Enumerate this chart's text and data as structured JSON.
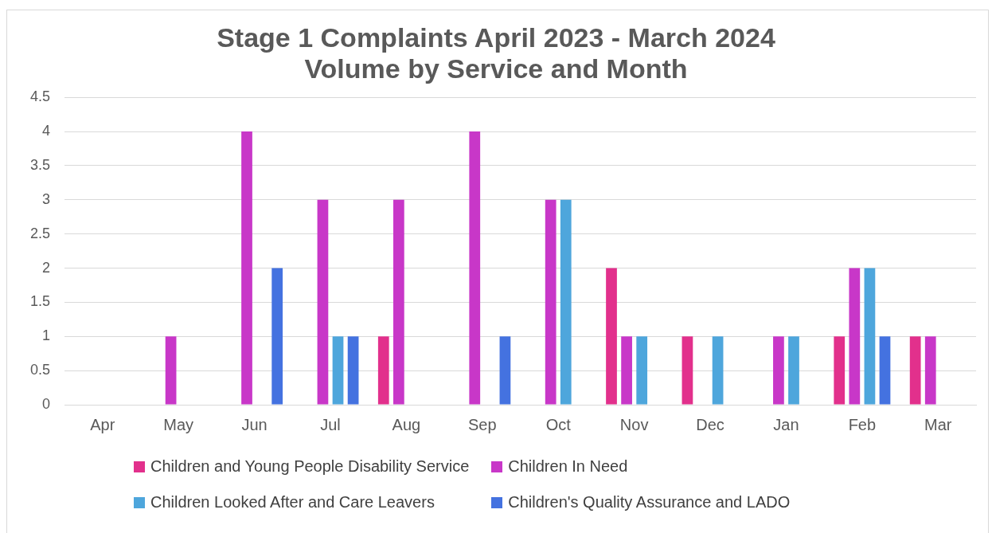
{
  "chart_data": {
    "type": "bar",
    "title": [
      "Stage 1 Complaints April 2023 - March 2024",
      "Volume by Service and Month"
    ],
    "categories": [
      "Apr",
      "May",
      "Jun",
      "Jul",
      "Aug",
      "Sep",
      "Oct",
      "Nov",
      "Dec",
      "Jan",
      "Feb",
      "Mar"
    ],
    "series": [
      {
        "name": "Children and Young People Disability Service",
        "color": "#e2308c",
        "values": [
          0,
          0,
          0,
          0,
          1,
          0,
          0,
          2,
          1,
          0,
          1,
          1
        ]
      },
      {
        "name": "Children In Need",
        "color": "#c837c8",
        "values": [
          0,
          1,
          4,
          3,
          3,
          4,
          3,
          1,
          0,
          1,
          2,
          1
        ]
      },
      {
        "name": "Children Looked After and Care Leavers",
        "color": "#4ea6dc",
        "values": [
          0,
          0,
          0,
          1,
          0,
          0,
          3,
          1,
          1,
          1,
          2,
          0
        ]
      },
      {
        "name": "Children's Quality Assurance and LADO",
        "color": "#4472e0",
        "values": [
          0,
          0,
          2,
          1,
          0,
          1,
          0,
          0,
          0,
          0,
          1,
          0
        ]
      }
    ],
    "ylim": [
      0,
      4.5
    ],
    "yticks": [
      0,
      0.5,
      1,
      1.5,
      2,
      2.5,
      3,
      3.5,
      4,
      4.5
    ],
    "grid": "y",
    "legend": "bottom"
  }
}
